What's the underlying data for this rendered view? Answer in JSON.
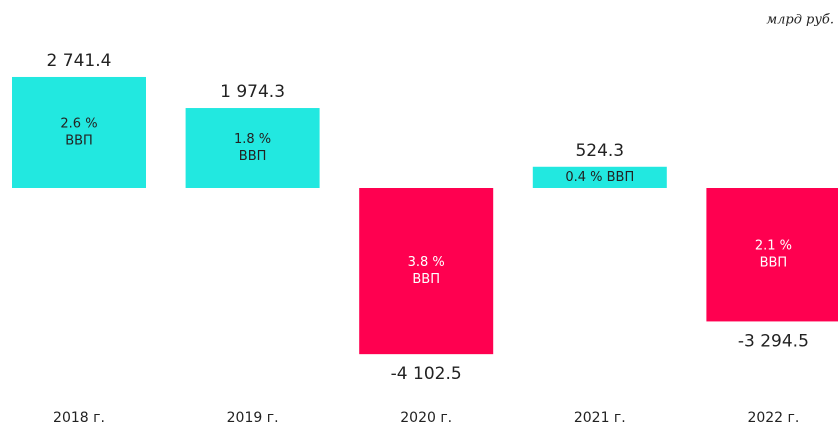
{
  "chart_data": {
    "type": "bar",
    "unit": "млрд руб.",
    "categories": [
      "2018 г.",
      "2019 г.",
      "2020 г.",
      "2021 г.",
      "2022 г."
    ],
    "values": [
      2741.4,
      1974.3,
      -4102.5,
      524.3,
      -3294.5
    ],
    "value_labels": [
      "2 741.4",
      "1 974.3",
      "-4 102.5",
      "524.3",
      "-3 294.5"
    ],
    "inner_labels": [
      [
        "2.6 %",
        "ВВП"
      ],
      [
        "1.8 %",
        "ВВП"
      ],
      [
        "3.8 %",
        "ВВП"
      ],
      [
        "0.4 % ВВП"
      ],
      [
        "2.1 %",
        "ВВП"
      ]
    ],
    "positive_color": "#22e8e0",
    "negative_color": "#ff0050"
  }
}
